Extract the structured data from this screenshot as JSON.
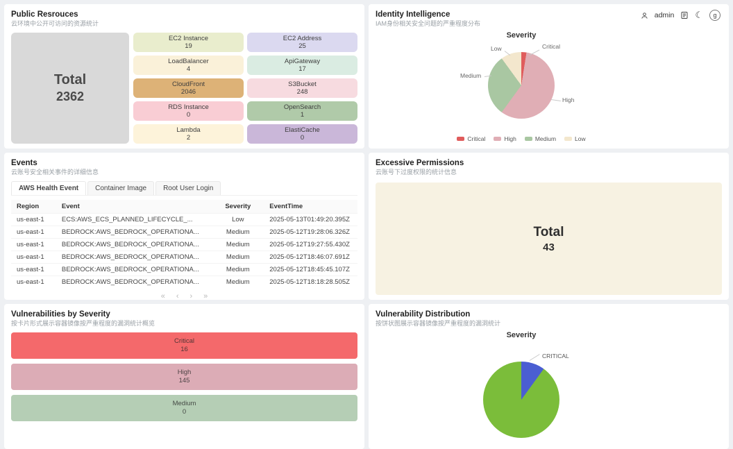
{
  "header": {
    "user_label": "admin",
    "avatar_letter": "g"
  },
  "public_resources": {
    "title": "Public Resrouces",
    "subtitle": "云环境中公开可访问的资源统计",
    "total": {
      "label": "Total",
      "value": "2362"
    },
    "cards": [
      {
        "name": "EC2 Instance",
        "value": "19",
        "color": "#e9edcd"
      },
      {
        "name": "EC2 Address",
        "value": "25",
        "color": "#dbd9f0"
      },
      {
        "name": "LoadBalancer",
        "value": "4",
        "color": "#faf1d9"
      },
      {
        "name": "ApiGateway",
        "value": "17",
        "color": "#daece2"
      },
      {
        "name": "CloudFront",
        "value": "2046",
        "color": "#ddb277"
      },
      {
        "name": "S3Bucket",
        "value": "248",
        "color": "#f7dbe0"
      },
      {
        "name": "RDS Instance",
        "value": "0",
        "color": "#f9cdd4"
      },
      {
        "name": "OpenSearch",
        "value": "1",
        "color": "#b0caa9"
      },
      {
        "name": "Lambda",
        "value": "2",
        "color": "#fdf3da"
      },
      {
        "name": "ElastiCache",
        "value": "0",
        "color": "#cab7d9"
      }
    ]
  },
  "identity_intelligence": {
    "title": "Identity Intelligence",
    "subtitle": "IAM身份相关安全问题的严重程度分布"
  },
  "events": {
    "title": "Events",
    "subtitle": "云账号安全相关事件的详细信息",
    "tabs": [
      "AWS Health Event",
      "Container Image",
      "Root User Login"
    ],
    "active_tab": "AWS Health Event",
    "columns": [
      "Region",
      "Event",
      "Severity",
      "EventTime"
    ],
    "rows": [
      [
        "us-east-1",
        "ECS:AWS_ECS_PLANNED_LIFECYCLE_...",
        "Low",
        "2025-05-13T01:49:20.395Z"
      ],
      [
        "us-east-1",
        "BEDROCK:AWS_BEDROCK_OPERATIONA...",
        "Medium",
        "2025-05-12T19:28:06.326Z"
      ],
      [
        "us-east-1",
        "BEDROCK:AWS_BEDROCK_OPERATIONA...",
        "Medium",
        "2025-05-12T19:27:55.430Z"
      ],
      [
        "us-east-1",
        "BEDROCK:AWS_BEDROCK_OPERATIONA...",
        "Medium",
        "2025-05-12T18:46:07.691Z"
      ],
      [
        "us-east-1",
        "BEDROCK:AWS_BEDROCK_OPERATIONA...",
        "Medium",
        "2025-05-12T18:45:45.107Z"
      ],
      [
        "us-east-1",
        "BEDROCK:AWS_BEDROCK_OPERATIONA...",
        "Medium",
        "2025-05-12T18:18:28.505Z"
      ]
    ],
    "pagination": [
      "«",
      "‹",
      "›",
      "»"
    ]
  },
  "excessive_permissions": {
    "title": "Excessive Permissions",
    "subtitle": "云账号下过度权限的统计信息",
    "total": {
      "label": "Total",
      "value": "43"
    }
  },
  "vulnerabilities_by_severity": {
    "title": "Vulnerabilities by Severity",
    "subtitle": "按卡片形式展示容器镜像按严重程度的漏洞统计概览",
    "bars": [
      {
        "name": "Critical",
        "value": "16",
        "color": "#f4696b"
      },
      {
        "name": "High",
        "value": "145",
        "color": "#dcacb6"
      },
      {
        "name": "Medium",
        "value": "0",
        "color": "#b5ceb5"
      }
    ]
  },
  "vulnerability_distribution": {
    "title": "Vulnerability Distribution",
    "subtitle": "按饼状图展示容器镜像按严重程度的漏洞统计"
  },
  "chart_data": [
    {
      "id": "identity_severity_pie",
      "type": "pie",
      "title": "Severity",
      "segments": [
        {
          "label": "Critical",
          "percent": 2.5,
          "color": "#e05c5c"
        },
        {
          "label": "High",
          "percent": 57.5,
          "color": "#e0aeb5"
        },
        {
          "label": "Medium",
          "percent": 30,
          "color": "#a9c7a2"
        },
        {
          "label": "Low",
          "percent": 10,
          "color": "#f3e7cd"
        }
      ],
      "legend_position": "bottom"
    },
    {
      "id": "vulnerability_severity_pie",
      "type": "pie",
      "title": "Severity",
      "segments": [
        {
          "label": "CRITICAL",
          "value": 16,
          "percent": 10,
          "color": "#4a5ed2"
        },
        {
          "label": "",
          "value": 145,
          "percent": 90,
          "color": "#7bbd3a"
        }
      ],
      "legend_position": "none"
    }
  ]
}
